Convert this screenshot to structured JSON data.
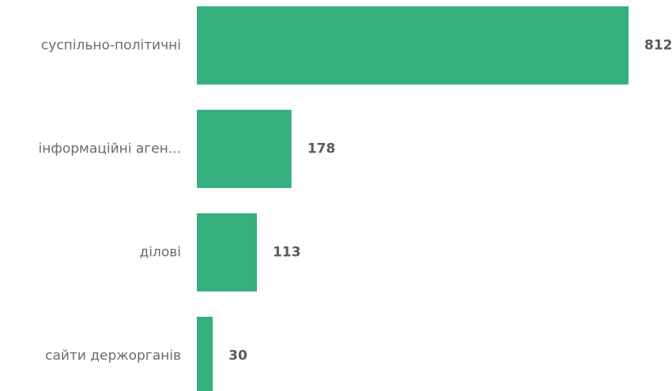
{
  "colors": {
    "bar": "#36b07f",
    "category_text": "#6b6b6b",
    "value_text": "#5a5a5a"
  },
  "chart_data": {
    "type": "bar",
    "orientation": "horizontal",
    "title": "",
    "xlabel": "",
    "ylabel": "",
    "categories": [
      "суспільно-політичні",
      "інформаційні аген...",
      "ділові",
      "сайти держорганів"
    ],
    "values": [
      812,
      178,
      113,
      30
    ],
    "xlim": [
      0,
      812
    ],
    "grid": false,
    "legend": "none"
  }
}
